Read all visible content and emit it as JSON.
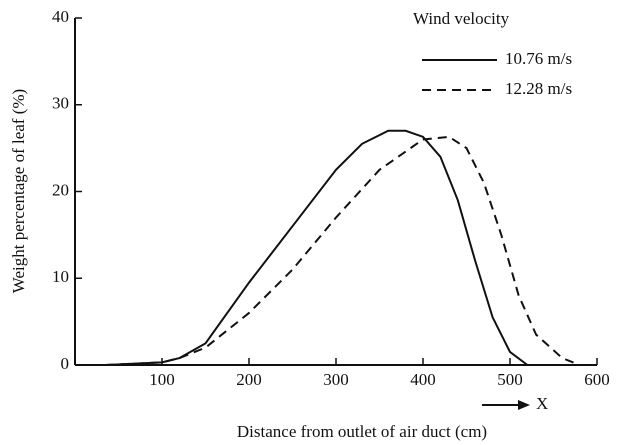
{
  "chart_data": {
    "type": "line",
    "xlabel": "Distance from outlet of air duct (cm)",
    "ylabel": "Weight percentage of leaf (%)",
    "legend_title": "Wind velocity",
    "annotation": "X",
    "xlim": [
      0,
      600
    ],
    "xticks": [
      100,
      200,
      300,
      400,
      500,
      600
    ],
    "ylim": [
      0,
      40
    ],
    "yticks": [
      0,
      10,
      20,
      30,
      40
    ],
    "legend": "upper right",
    "series": [
      {
        "name": "10.76 m/s",
        "color": "#111111",
        "style": "solid",
        "x": [
          35,
          100,
          120,
          150,
          200,
          250,
          300,
          330,
          360,
          380,
          400,
          420,
          440,
          460,
          480,
          500,
          520
        ],
        "values": [
          0,
          0.3,
          0.8,
          2.5,
          9.5,
          16,
          22.5,
          25.5,
          27,
          27,
          26.3,
          24,
          19,
          12,
          5.5,
          1.5,
          0
        ]
      },
      {
        "name": "12.28 m/s",
        "color": "#111111",
        "style": "dashed",
        "x": [
          35,
          100,
          120,
          150,
          200,
          250,
          300,
          350,
          400,
          430,
          450,
          470,
          490,
          510,
          530,
          560,
          580
        ],
        "values": [
          0,
          0.3,
          0.8,
          2,
          6,
          11,
          17,
          22.5,
          26,
          26.3,
          25,
          21,
          15,
          8,
          3.5,
          0.8,
          0
        ]
      }
    ]
  }
}
